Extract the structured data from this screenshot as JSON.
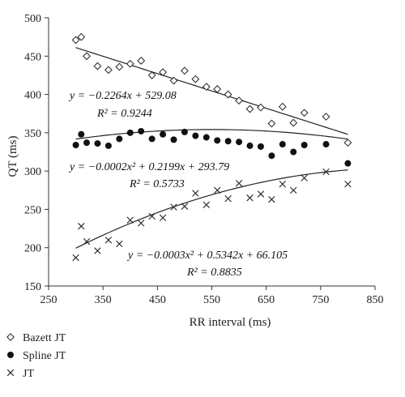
{
  "chart_data": {
    "type": "scatter",
    "xlabel": "RR interval (ms)",
    "ylabel": "QT (ms)",
    "xlim": [
      250,
      850
    ],
    "ylim": [
      150,
      500
    ],
    "xticks": [
      250,
      350,
      450,
      550,
      650,
      750,
      850
    ],
    "yticks": [
      150,
      200,
      250,
      300,
      350,
      400,
      450,
      500
    ],
    "grid": false,
    "legend_position": "bottom-left",
    "series": [
      {
        "name": "Bazett JT",
        "marker": "diamond-open",
        "points": [
          [
            300,
            471
          ],
          [
            310,
            475
          ],
          [
            320,
            450
          ],
          [
            340,
            437
          ],
          [
            360,
            432
          ],
          [
            380,
            436
          ],
          [
            400,
            440
          ],
          [
            420,
            444
          ],
          [
            440,
            425
          ],
          [
            460,
            429
          ],
          [
            480,
            418
          ],
          [
            500,
            431
          ],
          [
            520,
            420
          ],
          [
            540,
            410
          ],
          [
            560,
            407
          ],
          [
            580,
            400
          ],
          [
            600,
            392
          ],
          [
            620,
            381
          ],
          [
            640,
            383
          ],
          [
            660,
            362
          ],
          [
            680,
            384
          ],
          [
            700,
            363
          ],
          [
            720,
            376
          ],
          [
            760,
            371
          ],
          [
            800,
            337
          ]
        ],
        "fit": {
          "kind": "linear",
          "coef": [
            -0.2264,
            529.08
          ],
          "x_range": [
            300,
            800
          ]
        },
        "equation": "y = −0.2264x + 529.08",
        "r2": "R² = 0.9244"
      },
      {
        "name": "Spline JT",
        "marker": "circle-filled",
        "points": [
          [
            300,
            334
          ],
          [
            310,
            348
          ],
          [
            320,
            337
          ],
          [
            340,
            336
          ],
          [
            360,
            333
          ],
          [
            380,
            342
          ],
          [
            400,
            350
          ],
          [
            420,
            352
          ],
          [
            440,
            342
          ],
          [
            460,
            348
          ],
          [
            480,
            341
          ],
          [
            500,
            351
          ],
          [
            520,
            346
          ],
          [
            540,
            344
          ],
          [
            560,
            340
          ],
          [
            580,
            339
          ],
          [
            600,
            338
          ],
          [
            620,
            333
          ],
          [
            640,
            332
          ],
          [
            660,
            320
          ],
          [
            680,
            335
          ],
          [
            700,
            325
          ],
          [
            720,
            334
          ],
          [
            760,
            335
          ],
          [
            800,
            310
          ]
        ],
        "fit": {
          "kind": "quadratic",
          "coef": [
            -0.0002,
            0.2199,
            293.79
          ],
          "x_range": [
            300,
            800
          ]
        },
        "equation": "y = −0.0002x² + 0.2199x + 293.79",
        "r2": "R² = 0.5733"
      },
      {
        "name": "JT",
        "marker": "x",
        "points": [
          [
            300,
            187
          ],
          [
            310,
            228
          ],
          [
            320,
            208
          ],
          [
            340,
            196
          ],
          [
            360,
            210
          ],
          [
            380,
            205
          ],
          [
            400,
            236
          ],
          [
            420,
            232
          ],
          [
            440,
            241
          ],
          [
            460,
            239
          ],
          [
            480,
            253
          ],
          [
            500,
            254
          ],
          [
            520,
            271
          ],
          [
            540,
            256
          ],
          [
            560,
            275
          ],
          [
            580,
            264
          ],
          [
            600,
            284
          ],
          [
            620,
            265
          ],
          [
            640,
            270
          ],
          [
            660,
            263
          ],
          [
            680,
            283
          ],
          [
            700,
            275
          ],
          [
            720,
            291
          ],
          [
            760,
            299
          ],
          [
            800,
            283
          ]
        ],
        "fit": {
          "kind": "quadratic",
          "coef": [
            -0.0003,
            0.5342,
            66.105
          ],
          "x_range": [
            300,
            800
          ]
        },
        "equation": "y = −0.0003x² + 0.5342x + 66.105",
        "r2": "R² = 0.8835"
      }
    ]
  }
}
